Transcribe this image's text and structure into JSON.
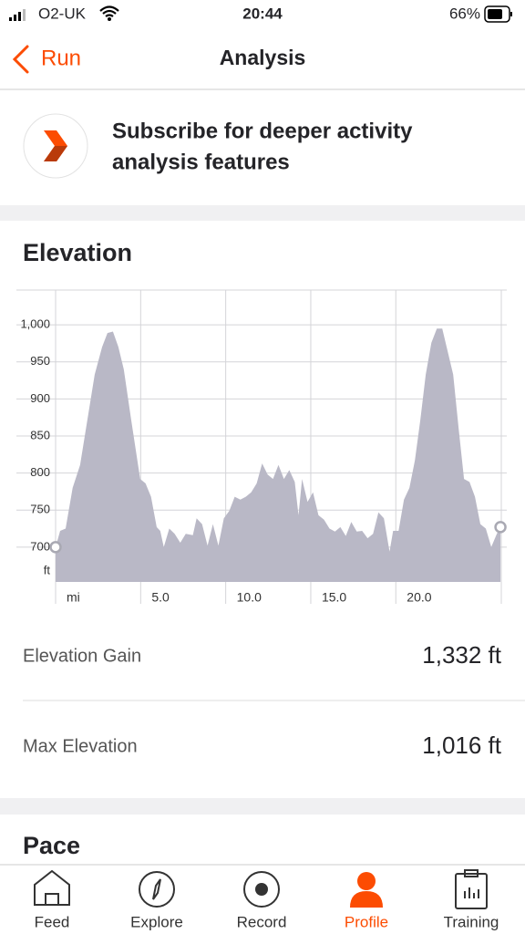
{
  "status_bar": {
    "carrier": "O2-UK",
    "time": "20:44",
    "battery": "66%"
  },
  "nav": {
    "back": "Run",
    "title": "Analysis"
  },
  "subscribe": {
    "lines": [
      "Subscribe for deeper activity",
      "analysis features"
    ]
  },
  "chart_data": {
    "type": "area",
    "title": "Elevation",
    "x": [
      0,
      0.27,
      0.59,
      1.0,
      1.44,
      1.87,
      2.3,
      2.73,
      3.05,
      3.37,
      3.69,
      4.01,
      4.44,
      4.97,
      5.29,
      5.61,
      5.94,
      6.15,
      6.36,
      6.68,
      7.0,
      7.33,
      7.65,
      8.07,
      8.29,
      8.61,
      8.93,
      9.25,
      9.57,
      9.89,
      10.21,
      10.53,
      10.86,
      11.18,
      11.5,
      11.82,
      12.14,
      12.46,
      12.78,
      13.1,
      13.42,
      13.74,
      14.06,
      14.28,
      14.49,
      14.81,
      15.13,
      15.45,
      15.78,
      16.1,
      16.42,
      16.74,
      17.06,
      17.38,
      17.7,
      18.02,
      18.34,
      18.66,
      18.98,
      19.3,
      19.63,
      19.84,
      20.16,
      20.48,
      20.8,
      21.12,
      21.44,
      21.76,
      22.09,
      22.41,
      22.73,
      23.05,
      23.37,
      23.69,
      24.01,
      24.33,
      24.65,
      24.97,
      25.29,
      25.61,
      25.94,
      26.15
    ],
    "values": [
      700,
      722,
      725,
      780,
      811,
      872,
      933,
      970,
      989,
      991,
      970,
      940,
      872,
      792,
      786,
      768,
      727,
      722,
      700,
      725,
      718,
      706,
      718,
      716,
      739,
      731,
      702,
      731,
      702,
      739,
      749,
      768,
      764,
      768,
      774,
      786,
      813,
      798,
      792,
      811,
      792,
      804,
      788,
      743,
      792,
      761,
      774,
      743,
      737,
      725,
      721,
      727,
      715,
      734,
      721,
      722,
      712,
      718,
      747,
      739,
      694,
      722,
      722,
      764,
      780,
      817,
      872,
      933,
      976,
      995,
      995,
      964,
      933,
      860,
      792,
      788,
      768,
      731,
      725,
      700,
      718,
      727
    ],
    "color": "#b9b8c6",
    "xlim": [
      0,
      26.2
    ],
    "ylim": [
      653,
      1047
    ],
    "xticks": [
      {
        "value": 0,
        "label": "mi"
      },
      {
        "value": 5,
        "label": "5.0"
      },
      {
        "value": 10,
        "label": "10.0"
      },
      {
        "value": 15,
        "label": "15.0"
      },
      {
        "value": 20,
        "label": "20.0"
      }
    ],
    "yticks": [
      {
        "value": 1000,
        "label": "1,000"
      },
      950,
      900,
      850,
      800,
      750,
      700
    ],
    "y_unit": "ft",
    "grid": true
  },
  "stats": [
    {
      "label": "Elevation Gain",
      "value": "1,332 ft"
    },
    {
      "label": "Max Elevation",
      "value": "1,016 ft"
    }
  ],
  "next_section": {
    "title": "Pace"
  },
  "tabs": [
    {
      "label": "Feed",
      "active": false
    },
    {
      "label": "Explore",
      "active": false
    },
    {
      "label": "Record",
      "active": false
    },
    {
      "label": "Profile",
      "active": true
    },
    {
      "label": "Training",
      "active": false
    }
  ]
}
